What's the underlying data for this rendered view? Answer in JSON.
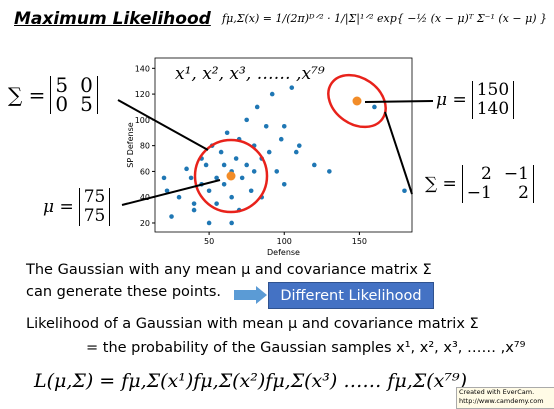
{
  "title": "Maximum Likelihood",
  "formula": "fμ,Σ(x) = 1/(2π)ᴰᐟ² · 1/|Σ|¹ᐟ² exp{ −½ (x − μ)ᵀ Σ⁻¹ (x − μ) }",
  "samples_label": "x¹, x², x³, …… ,x⁷⁹",
  "matrices": [
    {
      "label": "∑ =",
      "rows": [
        [
          "5",
          "0"
        ],
        [
          "0",
          "5"
        ]
      ]
    },
    {
      "label": "μ =",
      "rows": [
        [
          "150"
        ],
        [
          "140"
        ]
      ]
    },
    {
      "label": "∑ =",
      "rows": [
        [
          "2",
          "−1"
        ],
        [
          "−1",
          "2"
        ]
      ]
    },
    {
      "label": "μ =",
      "rows": [
        [
          "75"
        ],
        [
          "75"
        ]
      ]
    }
  ],
  "scatter": {
    "type": "scatter",
    "xlabel": "Defense",
    "ylabel": "SP Defense",
    "color": "#1f77b4",
    "xlim": [
      14,
      185
    ],
    "ylim": [
      13,
      148
    ],
    "xticks": [
      50,
      100,
      150
    ],
    "yticks": [
      20,
      40,
      60,
      80,
      100,
      120,
      140
    ],
    "x": [
      20,
      22,
      25,
      30,
      35,
      38,
      40,
      45,
      45,
      48,
      50,
      50,
      52,
      55,
      55,
      58,
      60,
      60,
      62,
      65,
      65,
      68,
      70,
      70,
      72,
      75,
      75,
      78,
      80,
      80,
      82,
      85,
      85,
      88,
      90,
      92,
      95,
      98,
      100,
      100,
      105,
      108,
      110,
      120,
      130,
      160,
      180,
      65,
      40
    ],
    "y": [
      55,
      45,
      25,
      40,
      62,
      55,
      30,
      70,
      50,
      65,
      20,
      45,
      80,
      55,
      35,
      75,
      65,
      50,
      90,
      60,
      40,
      70,
      85,
      30,
      55,
      100,
      65,
      45,
      80,
      60,
      110,
      70,
      40,
      95,
      75,
      120,
      60,
      85,
      95,
      50,
      125,
      75,
      80,
      65,
      60,
      110,
      45,
      20,
      35
    ]
  },
  "text": {
    "line1": "The Gaussian with any mean μ and covariance matrix Σ",
    "line2": "can generate these points.",
    "button": "Different Likelihood",
    "line3": "Likelihood of a Gaussian with mean μ and covariance matrix Σ",
    "line4": "= the probability of the Gaussian samples x¹, x², x³, …… ,x⁷⁹",
    "likelihood": "L(μ,Σ) = fμ,Σ(x¹)fμ,Σ(x²)fμ,Σ(x³) …… fμ,Σ(x⁷⁹)"
  },
  "watermark": [
    "Created with EverCam.",
    "http://www.camdemy.com"
  ]
}
